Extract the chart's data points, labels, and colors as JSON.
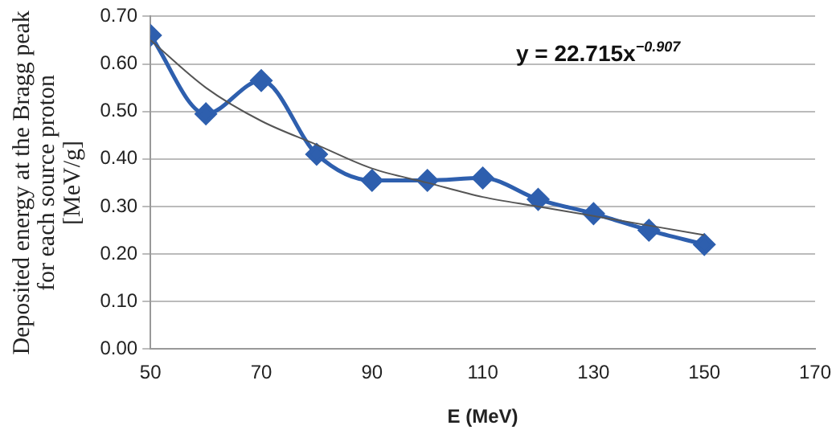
{
  "chart_data": {
    "type": "line",
    "xlabel": "E (MeV)",
    "ylabel": "Deposited energy at the Bragg peak\nfor each source proton\n[MeV/g]",
    "series": [
      {
        "color": "#2e5fae",
        "x": [
          50,
          60,
          70,
          80,
          90,
          100,
          110,
          120,
          130,
          140,
          150
        ],
        "values": [
          0.66,
          0.495,
          0.565,
          0.41,
          0.355,
          0.355,
          0.36,
          0.315,
          0.285,
          0.25,
          0.22
        ],
        "marker": "diamond"
      },
      {
        "color": "#555555",
        "x": [
          50,
          60,
          70,
          80,
          90,
          100,
          110,
          120,
          130,
          140,
          150
        ],
        "values": [
          0.65,
          0.55,
          0.48,
          0.43,
          0.38,
          0.35,
          0.32,
          0.3,
          0.28,
          0.26,
          0.24
        ],
        "marker": "none"
      }
    ],
    "xlim": [
      50,
      170
    ],
    "xticks": [
      50,
      70,
      90,
      110,
      130,
      150,
      170
    ],
    "ylim": [
      0,
      0.7
    ],
    "yticks": [
      {
        "value": 0,
        "label": "0.00"
      },
      {
        "value": 0.1,
        "label": "0.10"
      },
      {
        "value": 0.2,
        "label": "0.20"
      },
      {
        "value": 0.3,
        "label": "0.30"
      },
      {
        "value": 0.4,
        "label": "0.40"
      },
      {
        "value": 0.5,
        "label": "0.50"
      },
      {
        "value": 0.6,
        "label": "0.60"
      },
      {
        "value": 0.7,
        "label": "0.70"
      }
    ],
    "grid": "y",
    "legend": false,
    "annotations": [
      "y = 22.715x$^{−0.907}$"
    ]
  }
}
